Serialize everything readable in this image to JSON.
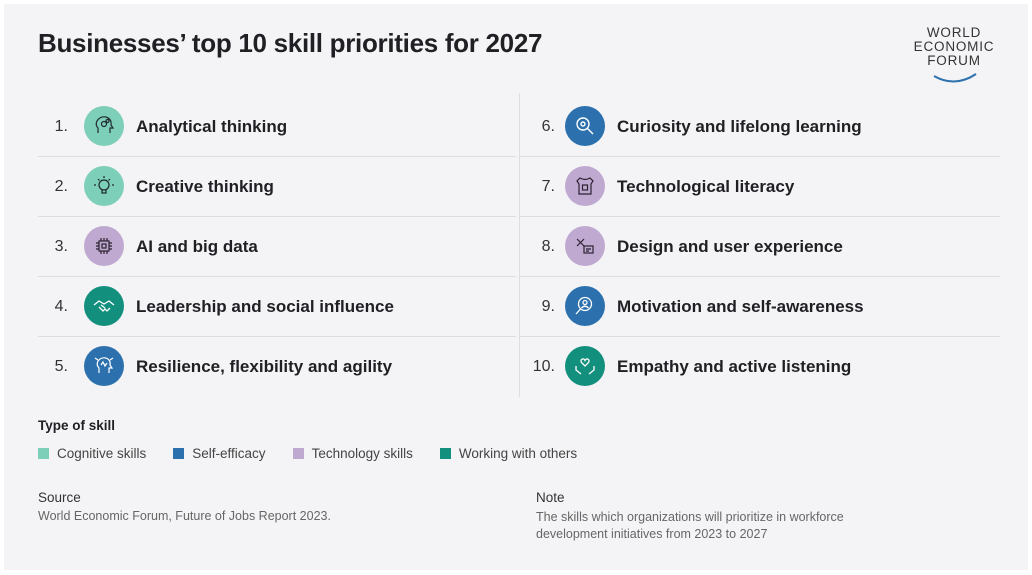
{
  "title": "Businesses’ top 10 skill priorities for 2027",
  "logo": {
    "lines": [
      "WORLD",
      "ECONOMIC",
      "FORUM"
    ]
  },
  "skills_left": [
    {
      "rank": "1.",
      "label": "Analytical thinking",
      "type": "cognitive",
      "icon": "head-gears-icon"
    },
    {
      "rank": "2.",
      "label": "Creative thinking",
      "type": "cognitive",
      "icon": "lightbulb-icon"
    },
    {
      "rank": "3.",
      "label": "AI and big data",
      "type": "technology",
      "icon": "chip-icon"
    },
    {
      "rank": "4.",
      "label": "Leadership and social influence",
      "type": "working",
      "icon": "handshake-icon"
    },
    {
      "rank": "5.",
      "label": "Resilience, flexibility and agility",
      "type": "self",
      "icon": "arrows-head-icon"
    }
  ],
  "skills_right": [
    {
      "rank": "6.",
      "label": "Curiosity and lifelong learning",
      "type": "self",
      "icon": "magnifier-icon"
    },
    {
      "rank": "7.",
      "label": "Technological literacy",
      "type": "technology",
      "icon": "shirt-chip-icon"
    },
    {
      "rank": "8.",
      "label": "Design and user experience",
      "type": "technology",
      "icon": "design-tools-icon"
    },
    {
      "rank": "9.",
      "label": "Motivation and self-awareness",
      "type": "self",
      "icon": "search-person-icon"
    },
    {
      "rank": "10.",
      "label": "Empathy and active listening",
      "type": "working",
      "icon": "heart-hands-icon"
    }
  ],
  "legend": {
    "title": "Type of skill",
    "items": [
      {
        "label": "Cognitive skills",
        "color": "#7dcfb9"
      },
      {
        "label": "Self-efficacy",
        "color": "#2c71ad"
      },
      {
        "label": "Technology skills",
        "color": "#c0a9d0"
      },
      {
        "label": "Working with others",
        "color": "#138f7d"
      }
    ]
  },
  "source": {
    "title": "Source",
    "text": "World Economic Forum, Future of Jobs Report 2023."
  },
  "note": {
    "title": "Note",
    "text": "The skills which organizations will prioritize in workforce development initiatives from 2023 to 2027"
  }
}
